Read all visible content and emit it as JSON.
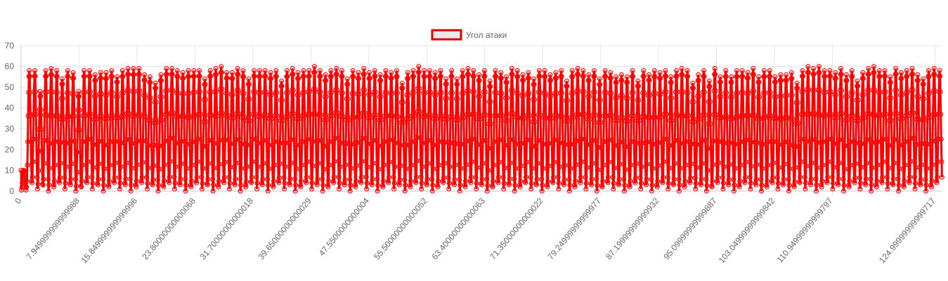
{
  "chart_data": {
    "type": "line",
    "legend": {
      "position": "top-center",
      "items": [
        {
          "label": "Угол атаки",
          "box_fill": "#e8e8e8",
          "box_border": "#e00000"
        }
      ]
    },
    "series": [
      {
        "name": "Угол атаки",
        "color": "#ff0000",
        "point_style": "circle",
        "x_start": 0,
        "x_end": 126.0,
        "approx_period": 1.32,
        "approx_min": 0,
        "approx_max": 62,
        "peaks": [
          10,
          58,
          58,
          48,
          58,
          59,
          58,
          54,
          58,
          57,
          48,
          58,
          58,
          56,
          57,
          57,
          58,
          55,
          58,
          59,
          59,
          59,
          56,
          55,
          52,
          56,
          59,
          59,
          58,
          57,
          58,
          58,
          58,
          54,
          58,
          59,
          60,
          57,
          57,
          59,
          58,
          54,
          58,
          58,
          58,
          57,
          58,
          53,
          58,
          59,
          57,
          58,
          58,
          60,
          58,
          56,
          58,
          59,
          58,
          54,
          58,
          57,
          59,
          57,
          58,
          56,
          58,
          57,
          58,
          52,
          57,
          58,
          60,
          58,
          58,
          57,
          58,
          54,
          58,
          54,
          58,
          59,
          58,
          56,
          58,
          53,
          58,
          57,
          55,
          59,
          58,
          56,
          57,
          54,
          58,
          58,
          56,
          57,
          58,
          53,
          58,
          59,
          58,
          56,
          58,
          54,
          58,
          57,
          55,
          56,
          55,
          58,
          53,
          58,
          56,
          58,
          57,
          58,
          55,
          58,
          59,
          58,
          52,
          56,
          58,
          53,
          59,
          55,
          58,
          55,
          58,
          58,
          57,
          59,
          55,
          58,
          58,
          55,
          56,
          56,
          57,
          52,
          58,
          60,
          59,
          60,
          58,
          58,
          57,
          59,
          56,
          58,
          53,
          57,
          59,
          60,
          58,
          58,
          55,
          59,
          57,
          58,
          59,
          56,
          54,
          58,
          59,
          58
        ]
      }
    ],
    "x_tick_labels": [
      "0",
      "7.949999999999988",
      "15.849999999999996",
      "23.80000000000068",
      "31.70000000000018",
      "39.65000000000029",
      "47.5500000000004",
      "55.50000000000052",
      "63.40000000000063",
      "71.35000000000022",
      "79.24999999999977",
      "87.19999999999932",
      "95.09999999999887",
      "103.04999999999842",
      "110.94999999999797",
      "124.99999999999717"
    ],
    "x_tick_values": [
      0,
      7.95,
      15.85,
      23.8,
      31.7,
      39.65,
      47.55,
      55.5,
      63.4,
      71.35,
      79.25,
      87.2,
      95.1,
      103.05,
      110.95,
      125.0
    ],
    "y_ticks": [
      0,
      10,
      20,
      30,
      40,
      50,
      60,
      70
    ],
    "ylim": [
      0,
      70
    ],
    "grid": true
  }
}
